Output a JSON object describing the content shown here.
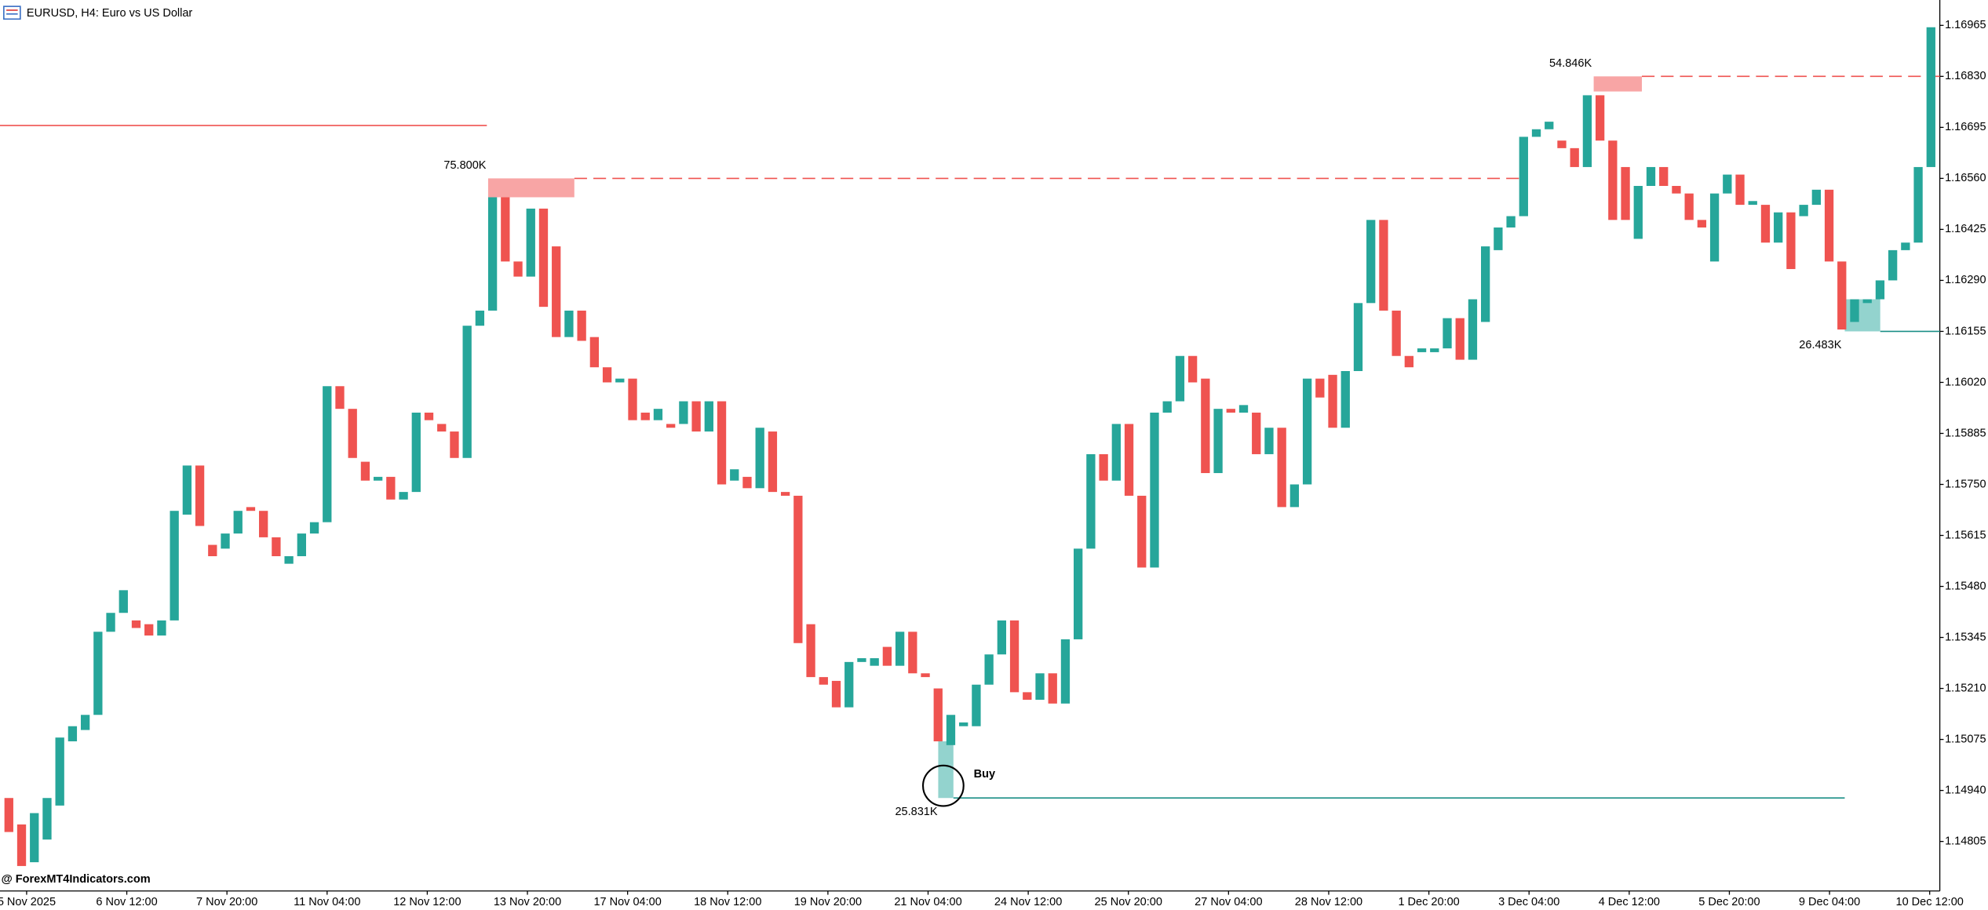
{
  "chart_data": {
    "type": "candlestick",
    "title": "EURUSD, H4:  Euro vs US Dollar",
    "watermark": "@ ForexMT4Indicators.com",
    "signal": "Buy",
    "up_color": "#26a69a",
    "down_color": "#ef5350",
    "ylim": [
      1.14674,
      1.17032
    ],
    "yticks": [
      1.16965,
      {
        "value": 1.1683,
        "label": "1.16830"
      },
      1.16695,
      {
        "value": 1.1656,
        "label": "1.16560"
      },
      1.16425,
      {
        "value": 1.1629,
        "label": "1.16290"
      },
      1.16155,
      {
        "value": 1.1602,
        "label": "1.16020"
      },
      1.15885,
      {
        "value": 1.1575,
        "label": "1.15750"
      },
      1.15615,
      {
        "value": 1.1548,
        "label": "1.15480"
      },
      1.15345,
      {
        "value": 1.1521,
        "label": "1.15210"
      },
      1.15075,
      {
        "value": 1.1494,
        "label": "1.14940"
      },
      1.14805
    ],
    "x_labels": [
      "5 Nov 2025",
      "6 Nov 12:00",
      "7 Nov 20:00",
      "11 Nov 04:00",
      "12 Nov 12:00",
      "13 Nov 20:00",
      "17 Nov 04:00",
      "18 Nov 12:00",
      "19 Nov 20:00",
      "21 Nov 04:00",
      "24 Nov 12:00",
      "25 Nov 20:00",
      "27 Nov 04:00",
      "28 Nov 12:00",
      "1 Dec 20:00",
      "3 Dec 04:00",
      "4 Dec 12:00",
      "5 Dec 20:00",
      "9 Dec 04:00",
      "10 Dec 12:00"
    ],
    "open": [
      1.1492,
      1.1485,
      1.1475,
      1.1481,
      1.149,
      1.1507,
      1.151,
      1.1514,
      1.1536,
      1.1541,
      1.1539,
      1.1538,
      1.1535,
      1.1539,
      1.1567,
      1.158,
      1.1559,
      1.1558,
      1.1562,
      1.1569,
      1.1568,
      1.1561,
      1.1554,
      1.1556,
      1.1562,
      1.1565,
      1.1601,
      1.1595,
      1.1581,
      1.1576,
      1.1577,
      1.1571,
      1.1573,
      1.1594,
      1.1591,
      1.1589,
      1.1582,
      1.1617,
      1.1621,
      1.1651,
      1.1634,
      1.163,
      1.1648,
      1.1638,
      1.1614,
      1.1621,
      1.1614,
      1.1606,
      1.1602,
      1.1603,
      1.1594,
      1.1592,
      1.1591,
      1.1591,
      1.1597,
      1.1589,
      1.1597,
      1.1576,
      1.1577,
      1.1574,
      1.1589,
      1.1573,
      1.1572,
      1.1538,
      1.1524,
      1.1523,
      1.1516,
      1.1528,
      1.1527,
      1.1532,
      1.1527,
      1.1536,
      1.1525,
      1.1521,
      1.1506,
      1.1511,
      1.1511,
      1.1522,
      1.153,
      1.1539,
      1.152,
      1.1518,
      1.1525,
      1.1517,
      1.1534,
      1.1558,
      1.1583,
      1.1576,
      1.1591,
      1.1572,
      1.1553,
      1.1594,
      1.1597,
      1.1609,
      1.1603,
      1.1578,
      1.1595,
      1.1594,
      1.1594,
      1.1583,
      1.159,
      1.1569,
      1.1575,
      1.1603,
      1.1604,
      1.159,
      1.1605,
      1.1623,
      1.1645,
      1.1621,
      1.1609,
      1.161,
      1.161,
      1.1611,
      1.1619,
      1.1608,
      1.1618,
      1.1637,
      1.1643,
      1.1646,
      1.1667,
      1.1669,
      1.1666,
      1.1664,
      1.1659,
      1.1678,
      1.1666,
      1.1659,
      1.164,
      1.1654,
      1.1659,
      1.1654,
      1.1652,
      1.1645,
      1.1634,
      1.1652,
      1.1657,
      1.1649,
      1.1649,
      1.1639,
      1.1647,
      1.1646,
      1.1649,
      1.1653,
      1.1634,
      1.1618,
      1.1623,
      1.1624,
      1.1629,
      1.1637,
      1.1639,
      1.1659
    ],
    "close": [
      1.1483,
      1.1474,
      1.1488,
      1.1492,
      1.1508,
      1.1511,
      1.1514,
      1.1536,
      1.1541,
      1.1547,
      1.1537,
      1.1535,
      1.1539,
      1.1568,
      1.158,
      1.1564,
      1.1556,
      1.1562,
      1.1568,
      1.1568,
      1.1561,
      1.1556,
      1.1556,
      1.1562,
      1.1565,
      1.1601,
      1.1595,
      1.1582,
      1.1576,
      1.1577,
      1.1571,
      1.1573,
      1.1594,
      1.1592,
      1.1589,
      1.1582,
      1.1617,
      1.1621,
      1.1651,
      1.1634,
      1.163,
      1.1648,
      1.1622,
      1.1614,
      1.1621,
      1.1613,
      1.1606,
      1.1602,
      1.1603,
      1.1592,
      1.1592,
      1.1595,
      1.159,
      1.1597,
      1.1589,
      1.1597,
      1.1575,
      1.1579,
      1.1574,
      1.159,
      1.1573,
      1.1572,
      1.1533,
      1.1524,
      1.1522,
      1.1516,
      1.1528,
      1.1529,
      1.1529,
      1.1527,
      1.1536,
      1.1525,
      1.1524,
      1.1507,
      1.1514,
      1.1512,
      1.1522,
      1.153,
      1.1539,
      1.152,
      1.1518,
      1.1525,
      1.1517,
      1.1534,
      1.1558,
      1.1583,
      1.1576,
      1.1591,
      1.1572,
      1.1553,
      1.1594,
      1.1597,
      1.1609,
      1.1602,
      1.1578,
      1.1595,
      1.1594,
      1.1596,
      1.1583,
      1.159,
      1.1569,
      1.1575,
      1.1603,
      1.1598,
      1.159,
      1.1605,
      1.1623,
      1.1645,
      1.1621,
      1.1609,
      1.1606,
      1.1611,
      1.1611,
      1.1619,
      1.1608,
      1.1624,
      1.1638,
      1.1643,
      1.1646,
      1.1667,
      1.1669,
      1.1671,
      1.1664,
      1.1659,
      1.1678,
      1.1666,
      1.1645,
      1.1645,
      1.1654,
      1.1659,
      1.1654,
      1.1652,
      1.1645,
      1.1643,
      1.1652,
      1.1657,
      1.1649,
      1.165,
      1.1639,
      1.1647,
      1.1632,
      1.1649,
      1.1653,
      1.1634,
      1.1616,
      1.1624,
      1.1624,
      1.1629,
      1.1637,
      1.1639,
      1.1659,
      1.1696
    ],
    "zones": [
      {
        "label": "75.800K",
        "top": 1.1656,
        "bottom": 1.1651,
        "color": "#ef5350",
        "fill": "#f8a5a5"
      },
      {
        "label": "54.846K",
        "top": 1.1683,
        "bottom": 1.1679,
        "color": "#ef5350",
        "fill": "#f8a5a5"
      },
      {
        "label": "26.483K",
        "top": 1.1624,
        "bottom": 1.16155,
        "color": "#1b8f87",
        "fill": "#93d3ce"
      },
      {
        "label": "25.831K",
        "top": 1.1507,
        "bottom": 1.1492,
        "color": "#1b8f87",
        "fill": "#93d3ce"
      }
    ],
    "levels": [
      {
        "value": 1.167,
        "color": "#ef5350"
      }
    ]
  }
}
